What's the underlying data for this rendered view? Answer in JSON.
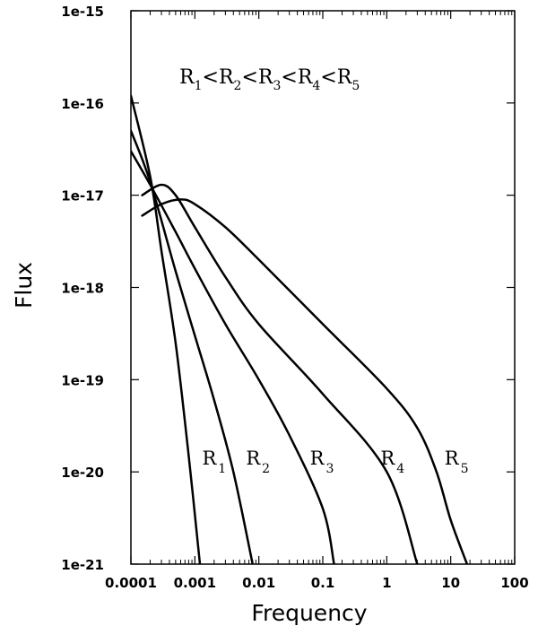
{
  "chart_data": {
    "type": "line",
    "title": "",
    "xlabel": "Frequency",
    "ylabel": "Flux",
    "xscale": "log",
    "yscale": "log",
    "xlim": [
      0.0001,
      100
    ],
    "ylim": [
      1e-21,
      1e-15
    ],
    "xticks": [
      {
        "value": 0.0001,
        "label": "0.0001"
      },
      {
        "value": 0.001,
        "label": "0.001"
      },
      {
        "value": 0.01,
        "label": "0.01"
      },
      {
        "value": 0.1,
        "label": "0.1"
      },
      {
        "value": 1,
        "label": "1"
      },
      {
        "value": 10,
        "label": "10"
      },
      {
        "value": 100,
        "label": "100"
      }
    ],
    "yticks": [
      {
        "value": 1e-15,
        "label": "1e-15"
      },
      {
        "value": 1e-16,
        "label": "1e-16"
      },
      {
        "value": 1e-17,
        "label": "1e-17"
      },
      {
        "value": 1e-18,
        "label": "1e-18"
      },
      {
        "value": 1e-19,
        "label": "1e-19"
      },
      {
        "value": 1e-20,
        "label": "1e-20"
      },
      {
        "value": 1e-21,
        "label": "1e-21"
      }
    ],
    "grid": false,
    "legend": "none",
    "annotation": {
      "parts": [
        {
          "main": "R",
          "sub": "1"
        },
        {
          "main": "<"
        },
        {
          "main": "R",
          "sub": "2"
        },
        {
          "main": "<"
        },
        {
          "main": "R",
          "sub": "3"
        },
        {
          "main": "<"
        },
        {
          "main": "R",
          "sub": "4"
        },
        {
          "main": "<"
        },
        {
          "main": "R",
          "sub": "5"
        }
      ]
    },
    "series": [
      {
        "label": {
          "main": "R",
          "sub": "1"
        },
        "label_at": [
          0.0013,
          1.2e-20
        ],
        "points": [
          [
            0.0001,
            1.2e-16
          ],
          [
            0.0002,
            1.6e-17
          ],
          [
            0.0003,
            2.5e-18
          ],
          [
            0.0005,
            2.5e-19
          ],
          [
            0.0008,
            1.5e-20
          ],
          [
            0.0012,
            1e-21
          ]
        ]
      },
      {
        "label": {
          "main": "R",
          "sub": "2"
        },
        "label_at": [
          0.0063,
          1.2e-20
        ],
        "points": [
          [
            0.0001,
            5e-17
          ],
          [
            0.0002,
            1.4e-17
          ],
          [
            0.0005,
            1.5e-18
          ],
          [
            0.001,
            3e-19
          ],
          [
            0.002,
            6e-20
          ],
          [
            0.004,
            1e-20
          ],
          [
            0.008,
            1e-21
          ]
        ]
      },
      {
        "label": {
          "main": "R",
          "sub": "3"
        },
        "label_at": [
          0.063,
          1.2e-20
        ],
        "points": [
          [
            0.0001,
            3e-17
          ],
          [
            0.0002,
            1.3e-17
          ],
          [
            0.0005,
            4e-18
          ],
          [
            0.001,
            1.6e-18
          ],
          [
            0.003,
            4e-19
          ],
          [
            0.01,
            1e-19
          ],
          [
            0.03,
            2.5e-20
          ],
          [
            0.1,
            4e-21
          ],
          [
            0.15,
            1e-21
          ]
        ]
      },
      {
        "label": {
          "main": "R",
          "sub": "4"
        },
        "label_at": [
          0.8,
          1.2e-20
        ],
        "points": [
          [
            0.00015,
            1e-17
          ],
          [
            0.0003,
            1.3e-17
          ],
          [
            0.0005,
            1e-17
          ],
          [
            0.001,
            4.5e-18
          ],
          [
            0.003,
            1.3e-18
          ],
          [
            0.01,
            4e-19
          ],
          [
            0.1,
            7e-20
          ],
          [
            1,
            1e-20
          ],
          [
            3,
            1e-21
          ]
        ]
      },
      {
        "label": {
          "main": "R",
          "sub": "5"
        },
        "label_at": [
          8,
          1.2e-20
        ],
        "points": [
          [
            0.00015,
            6e-18
          ],
          [
            0.0003,
            8e-18
          ],
          [
            0.0006,
            9e-18
          ],
          [
            0.001,
            8e-18
          ],
          [
            0.003,
            4.5e-18
          ],
          [
            0.01,
            2e-18
          ],
          [
            0.1,
            4e-19
          ],
          [
            1,
            8e-20
          ],
          [
            3,
            3e-20
          ],
          [
            6,
            1e-20
          ],
          [
            10,
            3e-21
          ],
          [
            18,
            1e-21
          ]
        ]
      }
    ]
  }
}
